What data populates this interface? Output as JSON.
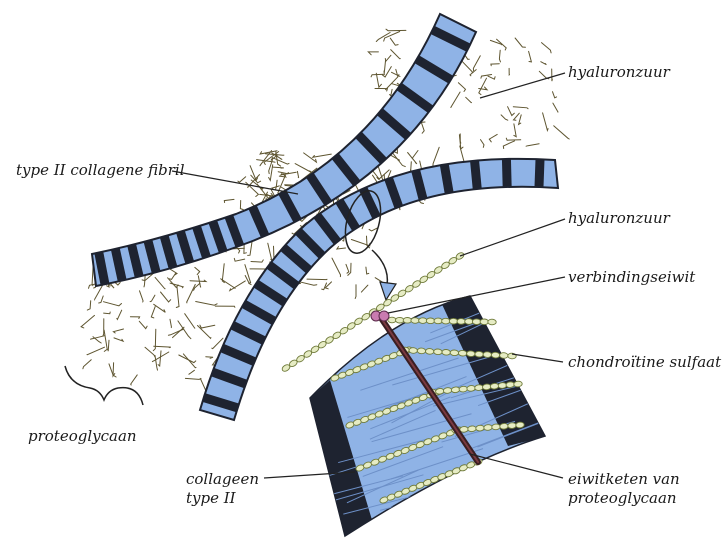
{
  "labels": {
    "hyaluronic_acid_top": "hyaluronzuur",
    "collagen_fibril": "type II collagene fibril",
    "hyaluronic_acid_mid": "hyaluronzuur",
    "link_protein": "verbindingseiwit",
    "chondroitin_sulfate": "chondroïtine sulfaat",
    "proteoglycan": "proteoglycaan",
    "collagen_type_ii_line1": "collageen",
    "collagen_type_ii_line2": "type II",
    "core_protein_line1": "eiwitketen van",
    "core_protein_line2": "proteoglycaan"
  },
  "colors": {
    "fibril_blue": "#8fb3e6",
    "fibril_dark_band": "#1e2330",
    "bead_fill": "#e6ecc4",
    "bead_stroke": "#6f7a3a",
    "link_protein": "#c97bb0",
    "mesh": "#5e5530",
    "leader_line": "#222222"
  }
}
